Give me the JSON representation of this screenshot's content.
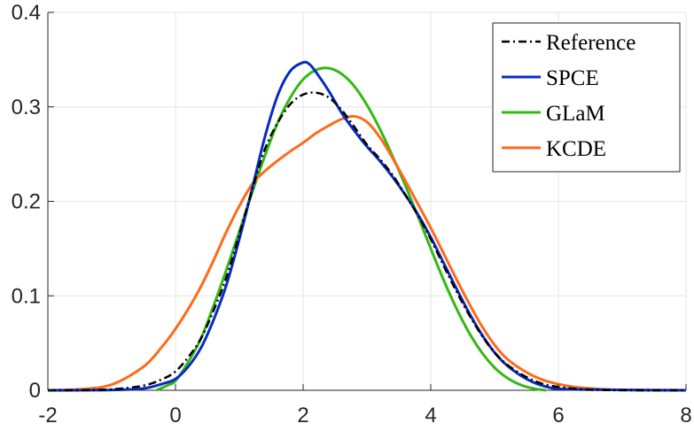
{
  "chart_data": {
    "type": "line",
    "title": "",
    "xlabel": "",
    "ylabel": "",
    "xlim": [
      -2,
      8
    ],
    "ylim": [
      0,
      0.4
    ],
    "grid": true,
    "legend_position": "top-right",
    "x_ticks": [
      -2,
      0,
      2,
      4,
      6,
      8
    ],
    "x_tick_labels": [
      "-2",
      "0",
      "2",
      "4",
      "6",
      "8"
    ],
    "y_ticks": [
      0,
      0.1,
      0.2,
      0.3,
      0.4
    ],
    "y_tick_labels": [
      "0",
      "0.1",
      "0.2",
      "0.3",
      "0.4"
    ],
    "series": [
      {
        "name": "Reference",
        "color": "#000000",
        "dash": "dashdot",
        "x": [
          -2,
          -1.5,
          -1.0,
          -0.5,
          -0.2,
          0.0,
          0.2,
          0.4,
          0.6,
          0.8,
          1.0,
          1.2,
          1.4,
          1.6,
          1.8,
          2.0,
          2.2,
          2.4,
          2.6,
          2.8,
          3.0,
          3.2,
          3.4,
          3.6,
          3.8,
          4.0,
          4.2,
          4.4,
          4.6,
          4.8,
          5.0,
          5.2,
          5.5,
          5.8,
          6.2,
          6.6,
          7.0,
          8.0
        ],
        "y": [
          0,
          0.0002,
          0.001,
          0.005,
          0.012,
          0.02,
          0.035,
          0.055,
          0.085,
          0.12,
          0.165,
          0.212,
          0.255,
          0.283,
          0.303,
          0.313,
          0.315,
          0.31,
          0.297,
          0.279,
          0.26,
          0.245,
          0.228,
          0.207,
          0.185,
          0.16,
          0.132,
          0.105,
          0.08,
          0.058,
          0.04,
          0.027,
          0.014,
          0.006,
          0.002,
          0.0005,
          0.0001,
          0
        ]
      },
      {
        "name": "SPCE",
        "color": "#0a2bc2",
        "dash": "solid",
        "x": [
          -2,
          -1.0,
          -0.5,
          -0.2,
          0.0,
          0.2,
          0.4,
          0.6,
          0.8,
          1.0,
          1.2,
          1.4,
          1.6,
          1.8,
          2.0,
          2.1,
          2.2,
          2.4,
          2.6,
          2.8,
          3.0,
          3.2,
          3.4,
          3.6,
          3.8,
          4.0,
          4.2,
          4.4,
          4.6,
          4.8,
          5.0,
          5.2,
          5.5,
          5.8,
          6.2,
          8.0
        ],
        "y": [
          0,
          0.0003,
          0.002,
          0.007,
          0.012,
          0.025,
          0.045,
          0.075,
          0.112,
          0.16,
          0.213,
          0.268,
          0.312,
          0.338,
          0.347,
          0.345,
          0.337,
          0.317,
          0.294,
          0.275,
          0.258,
          0.243,
          0.226,
          0.207,
          0.186,
          0.162,
          0.135,
          0.108,
          0.082,
          0.059,
          0.04,
          0.026,
          0.012,
          0.004,
          0.001,
          0
        ]
      },
      {
        "name": "GLaM",
        "color": "#33b814",
        "dash": "solid",
        "x": [
          -0.3,
          -0.1,
          0.0,
          0.2,
          0.4,
          0.6,
          0.8,
          1.0,
          1.2,
          1.4,
          1.6,
          1.8,
          2.0,
          2.2,
          2.4,
          2.6,
          2.8,
          3.0,
          3.2,
          3.4,
          3.6,
          3.8,
          4.0,
          4.2,
          4.4,
          4.6,
          4.8,
          5.0,
          5.2,
          5.4,
          5.6,
          5.8
        ],
        "y": [
          0,
          0.006,
          0.01,
          0.03,
          0.055,
          0.09,
          0.128,
          0.168,
          0.209,
          0.248,
          0.283,
          0.31,
          0.329,
          0.339,
          0.341,
          0.335,
          0.322,
          0.302,
          0.277,
          0.248,
          0.217,
          0.184,
          0.15,
          0.117,
          0.087,
          0.061,
          0.04,
          0.024,
          0.013,
          0.006,
          0.002,
          0
        ]
      },
      {
        "name": "KCDE",
        "color": "#ff6a1a",
        "dash": "solid",
        "x": [
          -2,
          -1.5,
          -1.0,
          -0.5,
          -0.2,
          0.0,
          0.2,
          0.4,
          0.6,
          0.8,
          1.0,
          1.2,
          1.4,
          1.6,
          1.8,
          2.0,
          2.2,
          2.4,
          2.6,
          2.8,
          3.0,
          3.2,
          3.4,
          3.6,
          3.8,
          4.0,
          4.2,
          4.4,
          4.6,
          4.8,
          5.0,
          5.2,
          5.5,
          5.8,
          6.2,
          6.6,
          7.0,
          8.0
        ],
        "y": [
          0,
          0.001,
          0.006,
          0.025,
          0.047,
          0.065,
          0.086,
          0.11,
          0.138,
          0.168,
          0.195,
          0.218,
          0.232,
          0.243,
          0.253,
          0.262,
          0.272,
          0.28,
          0.287,
          0.29,
          0.284,
          0.268,
          0.246,
          0.222,
          0.197,
          0.172,
          0.145,
          0.118,
          0.092,
          0.068,
          0.048,
          0.033,
          0.019,
          0.01,
          0.004,
          0.0015,
          0.0004,
          0
        ]
      }
    ]
  }
}
